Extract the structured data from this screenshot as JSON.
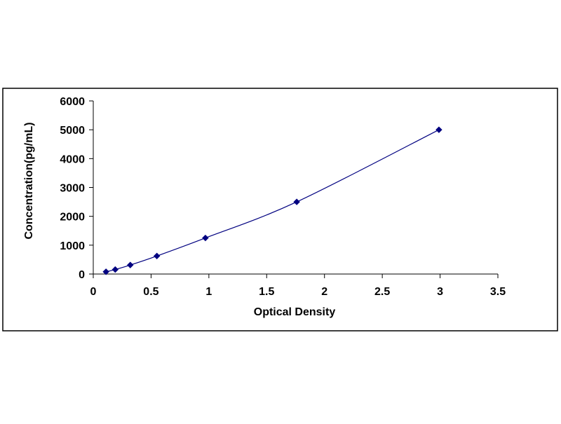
{
  "chart_data": {
    "type": "scatter",
    "title": "",
    "xlabel": "Optical Density",
    "ylabel": "Concentration(pg/mL)",
    "xlim": [
      0,
      3.5
    ],
    "ylim": [
      0,
      6000
    ],
    "x_ticks": [
      "0",
      "0.5",
      "1",
      "1.5",
      "2",
      "2.5",
      "3",
      "3.5"
    ],
    "y_ticks": [
      "0",
      "1000",
      "2000",
      "3000",
      "4000",
      "5000",
      "6000"
    ],
    "grid": false,
    "legend": "none",
    "marker": "diamond",
    "trendline": "smooth",
    "colors": {
      "series": "#000080",
      "axis": "#000000",
      "border": "#000000"
    },
    "series": [
      {
        "x": [
          0.11,
          0.19,
          0.32,
          0.55,
          0.97,
          1.76,
          2.99
        ],
        "y": [
          78,
          156,
          312,
          625,
          1250,
          2500,
          5000
        ]
      }
    ]
  }
}
